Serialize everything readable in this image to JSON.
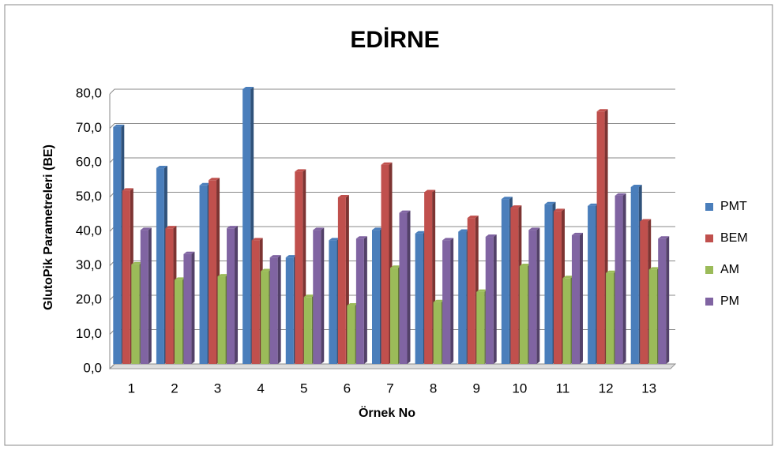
{
  "chart_data": {
    "type": "bar",
    "title": "EDİRNE",
    "x_label": "Örnek No",
    "y_label": "GlutoPik Parametreleri (BE)",
    "categories": [
      "1",
      "2",
      "3",
      "4",
      "5",
      "6",
      "7",
      "8",
      "9",
      "10",
      "11",
      "12",
      "13"
    ],
    "series": [
      {
        "name": "PMT",
        "color": "#4a7ebb",
        "values": [
          69,
          57,
          52,
          80,
          31,
          36,
          39,
          38,
          38.5,
          48,
          46.5,
          46,
          51.5
        ]
      },
      {
        "name": "BEM",
        "color": "#c0504d",
        "values": [
          50.5,
          39.5,
          53.5,
          36,
          56,
          48.5,
          58,
          50,
          42.5,
          45.5,
          44.5,
          73.5,
          41.5
        ]
      },
      {
        "name": "AM",
        "color": "#9bbb59",
        "values": [
          29,
          24.5,
          25.5,
          27,
          19.5,
          17,
          28,
          18,
          21,
          28.5,
          25,
          26.5,
          27.5
        ]
      },
      {
        "name": "PM",
        "color": "#8064a2",
        "values": [
          39,
          32,
          39.5,
          31,
          39,
          36.5,
          44,
          36,
          37,
          39,
          37.5,
          49,
          36.5
        ]
      }
    ],
    "ylim": [
      0,
      80
    ],
    "yticks": [
      {
        "value": 0,
        "label": "0,0"
      },
      {
        "value": 10,
        "label": "10,0"
      },
      {
        "value": 20,
        "label": "20,0"
      },
      {
        "value": 30,
        "label": "30,0"
      },
      {
        "value": 40,
        "label": "40,0"
      },
      {
        "value": 50,
        "label": "50,0"
      },
      {
        "value": 60,
        "label": "60,0"
      },
      {
        "value": 70,
        "label": "70,0"
      },
      {
        "value": 80,
        "label": "80,0"
      }
    ],
    "grid": true,
    "legend": "right"
  }
}
